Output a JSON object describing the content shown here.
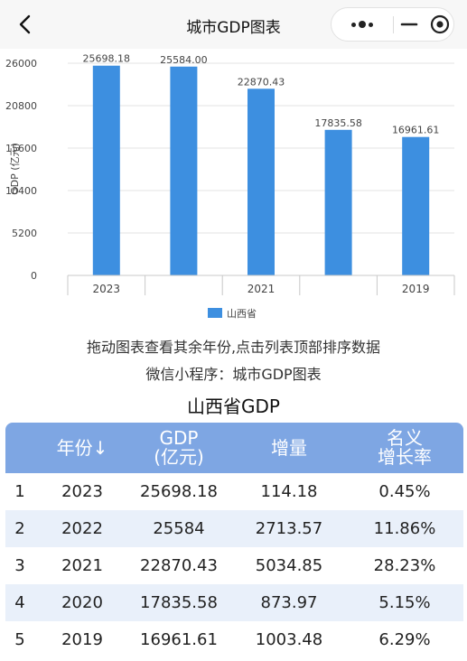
{
  "header": {
    "title": "城市GDP图表",
    "back_icon": "chevron-left-icon",
    "more_icon": "more-dots-icon",
    "minimize_icon": "minus-icon",
    "close_icon": "target-circle-icon"
  },
  "chart_data": {
    "type": "bar",
    "categories": [
      "2023",
      "2022",
      "2021",
      "2020",
      "2019"
    ],
    "tick_labels": [
      "2023",
      "",
      "2021",
      "",
      "2019"
    ],
    "series": [
      {
        "name": "山西省",
        "values": [
          25698.18,
          25584.0,
          22870.43,
          17835.58,
          16961.61
        ],
        "color": "#3d8fe0"
      }
    ],
    "data_labels": [
      "25698.18",
      "25584.00",
      "22870.43",
      "17835.58",
      "16961.61"
    ],
    "yticks": [
      "0",
      "5200",
      "10400",
      "15600",
      "20800",
      "26000"
    ],
    "ylabel": "GDP (亿元)",
    "ylim": [
      0,
      26000
    ],
    "grid": true,
    "legend": "bottom-center"
  },
  "tips": {
    "line1": "拖动图表查看其余年份,点击列表顶部排序数据",
    "line2": "微信小程序：城市GDP图表"
  },
  "page_title": "山西省GDP",
  "table": {
    "headers": {
      "year": "年份↓",
      "gdp_line1": "GDP",
      "gdp_line2": "(亿元)",
      "increase": "增量",
      "growth_line1": "名义",
      "growth_line2": "增长率"
    },
    "rows": [
      {
        "rank": "1",
        "year": "2023",
        "gdp": "25698.18",
        "increase": "114.18",
        "growth": "0.45%"
      },
      {
        "rank": "2",
        "year": "2022",
        "gdp": "25584",
        "increase": "2713.57",
        "growth": "11.86%"
      },
      {
        "rank": "3",
        "year": "2021",
        "gdp": "22870.43",
        "increase": "5034.85",
        "growth": "28.23%"
      },
      {
        "rank": "4",
        "year": "2020",
        "gdp": "17835.58",
        "increase": "873.97",
        "growth": "5.15%"
      },
      {
        "rank": "5",
        "year": "2019",
        "gdp": "16961.61",
        "increase": "1003.48",
        "growth": "6.29%"
      }
    ]
  }
}
